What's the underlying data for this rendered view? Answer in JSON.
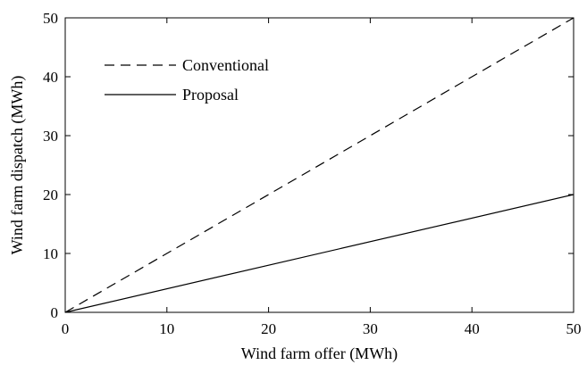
{
  "chart_data": {
    "type": "line",
    "xlabel": "Wind farm offer (MWh)",
    "ylabel": "Wind farm dispatch (MWh)",
    "xlim": [
      0,
      50
    ],
    "ylim": [
      0,
      50
    ],
    "xticks": [
      0,
      10,
      20,
      30,
      40,
      50
    ],
    "yticks": [
      0,
      10,
      20,
      30,
      40,
      50
    ],
    "grid": false,
    "legend_position": "top-left",
    "series": [
      {
        "name": "Conventional",
        "style": "dashed",
        "color": "#000000",
        "x": [
          0,
          50
        ],
        "y": [
          0,
          50
        ]
      },
      {
        "name": "Proposal",
        "style": "solid",
        "color": "#000000",
        "x": [
          0,
          50
        ],
        "y": [
          0,
          20
        ]
      }
    ]
  }
}
